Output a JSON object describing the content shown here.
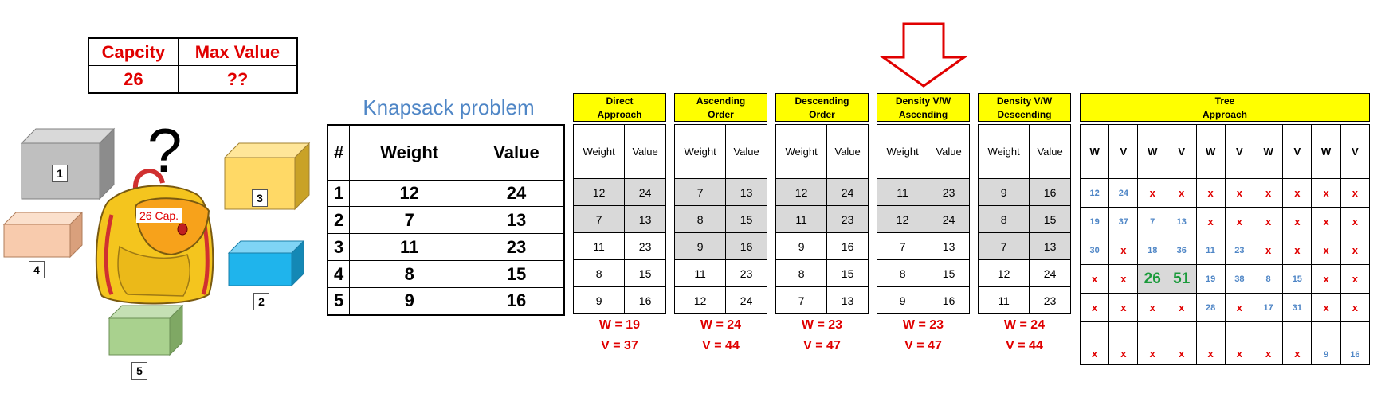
{
  "capacity_table": {
    "headers": [
      "Capcity",
      "Max Value"
    ],
    "values": [
      "26",
      "??"
    ]
  },
  "question_mark": "?",
  "bag_label": "26 Cap.",
  "boxes": [
    {
      "label": "1",
      "color": "#bfbfbf"
    },
    {
      "label": "2",
      "color": "#1fb4ec"
    },
    {
      "label": "3",
      "color": "#ffd966"
    },
    {
      "label": "4",
      "color": "#f8cbad"
    },
    {
      "label": "5",
      "color": "#a9d18e"
    }
  ],
  "knapsack": {
    "title": "Knapsack problem",
    "headers": [
      "#",
      "Weight",
      "Value"
    ],
    "rows": [
      [
        "1",
        "12",
        "24"
      ],
      [
        "2",
        "7",
        "13"
      ],
      [
        "3",
        "11",
        "23"
      ],
      [
        "4",
        "8",
        "15"
      ],
      [
        "5",
        "9",
        "16"
      ]
    ]
  },
  "approaches": [
    {
      "title_line1": "Direct",
      "title_line2": "Approach",
      "col1": "Weight",
      "col2": "Value",
      "rows": [
        [
          "12",
          "24"
        ],
        [
          "7",
          "13"
        ],
        [
          "11",
          "23"
        ],
        [
          "8",
          "15"
        ],
        [
          "9",
          "16"
        ]
      ],
      "selected": [
        0,
        1
      ],
      "total_w": "W = 19",
      "total_v": "V = 37"
    },
    {
      "title_line1": "Ascending",
      "title_line2": "Order",
      "col1": "Weight",
      "col2": "Value",
      "rows": [
        [
          "7",
          "13"
        ],
        [
          "8",
          "15"
        ],
        [
          "9",
          "16"
        ],
        [
          "11",
          "23"
        ],
        [
          "12",
          "24"
        ]
      ],
      "selected": [
        0,
        1,
        2
      ],
      "total_w": "W = 24",
      "total_v": "V = 44"
    },
    {
      "title_line1": "Descending",
      "title_line2": "Order",
      "col1": "Weight",
      "col2": "Value",
      "rows": [
        [
          "12",
          "24"
        ],
        [
          "11",
          "23"
        ],
        [
          "9",
          "16"
        ],
        [
          "8",
          "15"
        ],
        [
          "7",
          "13"
        ]
      ],
      "selected": [
        0,
        1
      ],
      "total_w": "W = 23",
      "total_v": "V = 47"
    },
    {
      "title_line1": "Density V/W",
      "title_line2": "Ascending",
      "col1": "Weight",
      "col2": "Value",
      "rows": [
        [
          "11",
          "23"
        ],
        [
          "12",
          "24"
        ],
        [
          "7",
          "13"
        ],
        [
          "8",
          "15"
        ],
        [
          "9",
          "16"
        ]
      ],
      "selected": [
        0,
        1
      ],
      "total_w": "W = 23",
      "total_v": "V = 47"
    },
    {
      "title_line1": "Density V/W",
      "title_line2": "Descending",
      "col1": "Weight",
      "col2": "Value",
      "rows": [
        [
          "9",
          "16"
        ],
        [
          "8",
          "15"
        ],
        [
          "7",
          "13"
        ],
        [
          "12",
          "24"
        ],
        [
          "11",
          "23"
        ]
      ],
      "selected": [
        0,
        1,
        2
      ],
      "total_w": "W = 24",
      "total_v": "V = 44"
    }
  ],
  "tree": {
    "title_line1": "Tree",
    "title_line2": "Approach",
    "headers": [
      "W",
      "V",
      "W",
      "V",
      "W",
      "V",
      "W",
      "V",
      "W",
      "V"
    ],
    "rows": [
      [
        "12",
        "24",
        "x",
        "x",
        "x",
        "x",
        "x",
        "x",
        "x",
        "x"
      ],
      [
        "19",
        "37",
        "7",
        "13",
        "x",
        "x",
        "x",
        "x",
        "x",
        "x"
      ],
      [
        "30",
        "x",
        "18",
        "36",
        "11",
        "23",
        "x",
        "x",
        "x",
        "x"
      ],
      [
        "x",
        "x",
        "26",
        "51",
        "19",
        "38",
        "8",
        "15",
        "x",
        "x"
      ],
      [
        "x",
        "x",
        "x",
        "x",
        "28",
        "x",
        "17",
        "31",
        "x",
        "x"
      ],
      [
        "x",
        "x",
        "x",
        "x",
        "x",
        "x",
        "x",
        "x",
        "9",
        "16"
      ]
    ]
  },
  "colors": {
    "red": "#e00000",
    "yellow": "#ffff00",
    "gray": "#d9d9d9",
    "blue_text": "#4f86c6",
    "green_text": "#1a9a3a"
  }
}
